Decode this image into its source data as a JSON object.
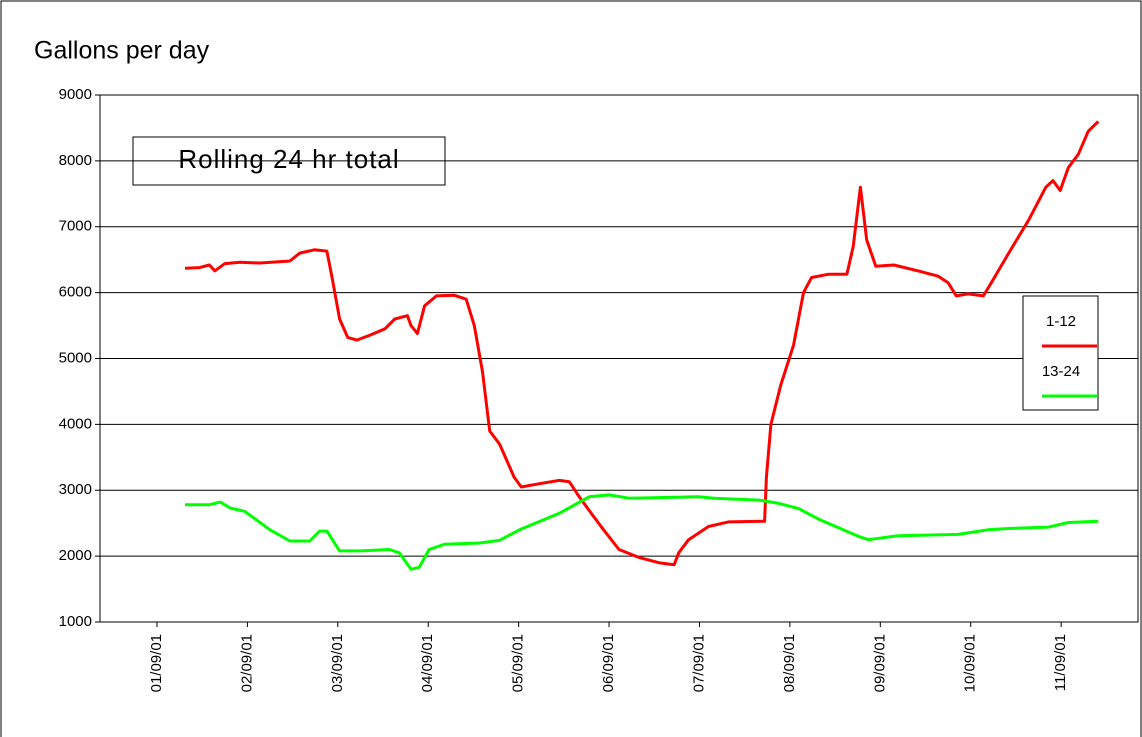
{
  "chart_data": {
    "type": "line",
    "title": "Gallons per day",
    "annotation": "Rolling 24 hr total",
    "legend_position": "right",
    "grid": true,
    "ylim": [
      1000,
      9000
    ],
    "yticks": [
      1000,
      2000,
      3000,
      4000,
      5000,
      6000,
      7000,
      8000,
      9000
    ],
    "xlim": [
      -0.63,
      10.85
    ],
    "xticks": [
      {
        "value": 0,
        "label": "01/09/01"
      },
      {
        "value": 1,
        "label": "02/09/01"
      },
      {
        "value": 2,
        "label": "03/09/01"
      },
      {
        "value": 3,
        "label": "04/09/01"
      },
      {
        "value": 4,
        "label": "05/09/01"
      },
      {
        "value": 5,
        "label": "06/09/01"
      },
      {
        "value": 6,
        "label": "07/09/01"
      },
      {
        "value": 7,
        "label": "08/09/01"
      },
      {
        "value": 8,
        "label": "09/09/01"
      },
      {
        "value": 9,
        "label": "10/09/01"
      },
      {
        "value": 10,
        "label": "11/09/01"
      }
    ],
    "series": [
      {
        "name": "1-12",
        "color": "#ff0000",
        "x": [
          0.31,
          0.47,
          0.58,
          0.64,
          0.75,
          0.92,
          1.14,
          1.47,
          1.58,
          1.74,
          1.88,
          1.94,
          2.02,
          2.11,
          2.21,
          2.35,
          2.52,
          2.63,
          2.77,
          2.81,
          2.88,
          2.96,
          3.09,
          3.29,
          3.42,
          3.51,
          3.6,
          3.68,
          3.79,
          3.95,
          4.03,
          4.23,
          4.45,
          4.56,
          4.67,
          4.83,
          4.94,
          5.11,
          5.33,
          5.55,
          5.72,
          5.77,
          5.88,
          6.1,
          6.32,
          6.72,
          6.74,
          6.79,
          6.9,
          7.04,
          7.15,
          7.24,
          7.43,
          7.63,
          7.7,
          7.78,
          7.85,
          7.95,
          8.15,
          8.42,
          8.64,
          8.75,
          8.84,
          8.97,
          9.14,
          9.25,
          9.42,
          9.64,
          9.83,
          9.91,
          9.99,
          10.08,
          10.19,
          10.3,
          10.41
        ],
        "values": [
          6370,
          6380,
          6420,
          6330,
          6440,
          6460,
          6450,
          6480,
          6600,
          6650,
          6630,
          6200,
          5600,
          5320,
          5280,
          5350,
          5450,
          5600,
          5650,
          5500,
          5380,
          5800,
          5950,
          5960,
          5900,
          5500,
          4800,
          3900,
          3700,
          3200,
          3050,
          3100,
          3150,
          3130,
          2900,
          2600,
          2400,
          2100,
          1980,
          1900,
          1870,
          2050,
          2250,
          2450,
          2520,
          2530,
          3200,
          4000,
          4600,
          5200,
          6000,
          6230,
          6280,
          6280,
          6700,
          7600,
          6800,
          6400,
          6420,
          6330,
          6250,
          6150,
          5950,
          5980,
          5950,
          6200,
          6600,
          7100,
          7600,
          7700,
          7550,
          7900,
          8100,
          8450,
          8600
        ]
      },
      {
        "name": "13-24",
        "color": "#00ff00",
        "x": [
          0.31,
          0.58,
          0.7,
          0.81,
          0.97,
          1.25,
          1.47,
          1.69,
          1.8,
          1.88,
          2.02,
          2.24,
          2.57,
          2.68,
          2.81,
          2.9,
          3.01,
          3.18,
          3.57,
          3.79,
          4.01,
          4.45,
          4.78,
          5.0,
          5.22,
          5.99,
          6.16,
          6.66,
          6.88,
          7.1,
          7.32,
          7.76,
          7.87,
          7.98,
          8.2,
          8.86,
          9.19,
          9.42,
          9.86,
          10.08,
          10.41
        ],
        "values": [
          2780,
          2780,
          2820,
          2730,
          2680,
          2400,
          2230,
          2230,
          2380,
          2380,
          2080,
          2080,
          2100,
          2050,
          1800,
          1830,
          2100,
          2180,
          2200,
          2240,
          2400,
          2650,
          2900,
          2930,
          2880,
          2900,
          2880,
          2850,
          2800,
          2720,
          2560,
          2300,
          2250,
          2270,
          2310,
          2330,
          2400,
          2420,
          2440,
          2510,
          2530
        ]
      }
    ]
  }
}
